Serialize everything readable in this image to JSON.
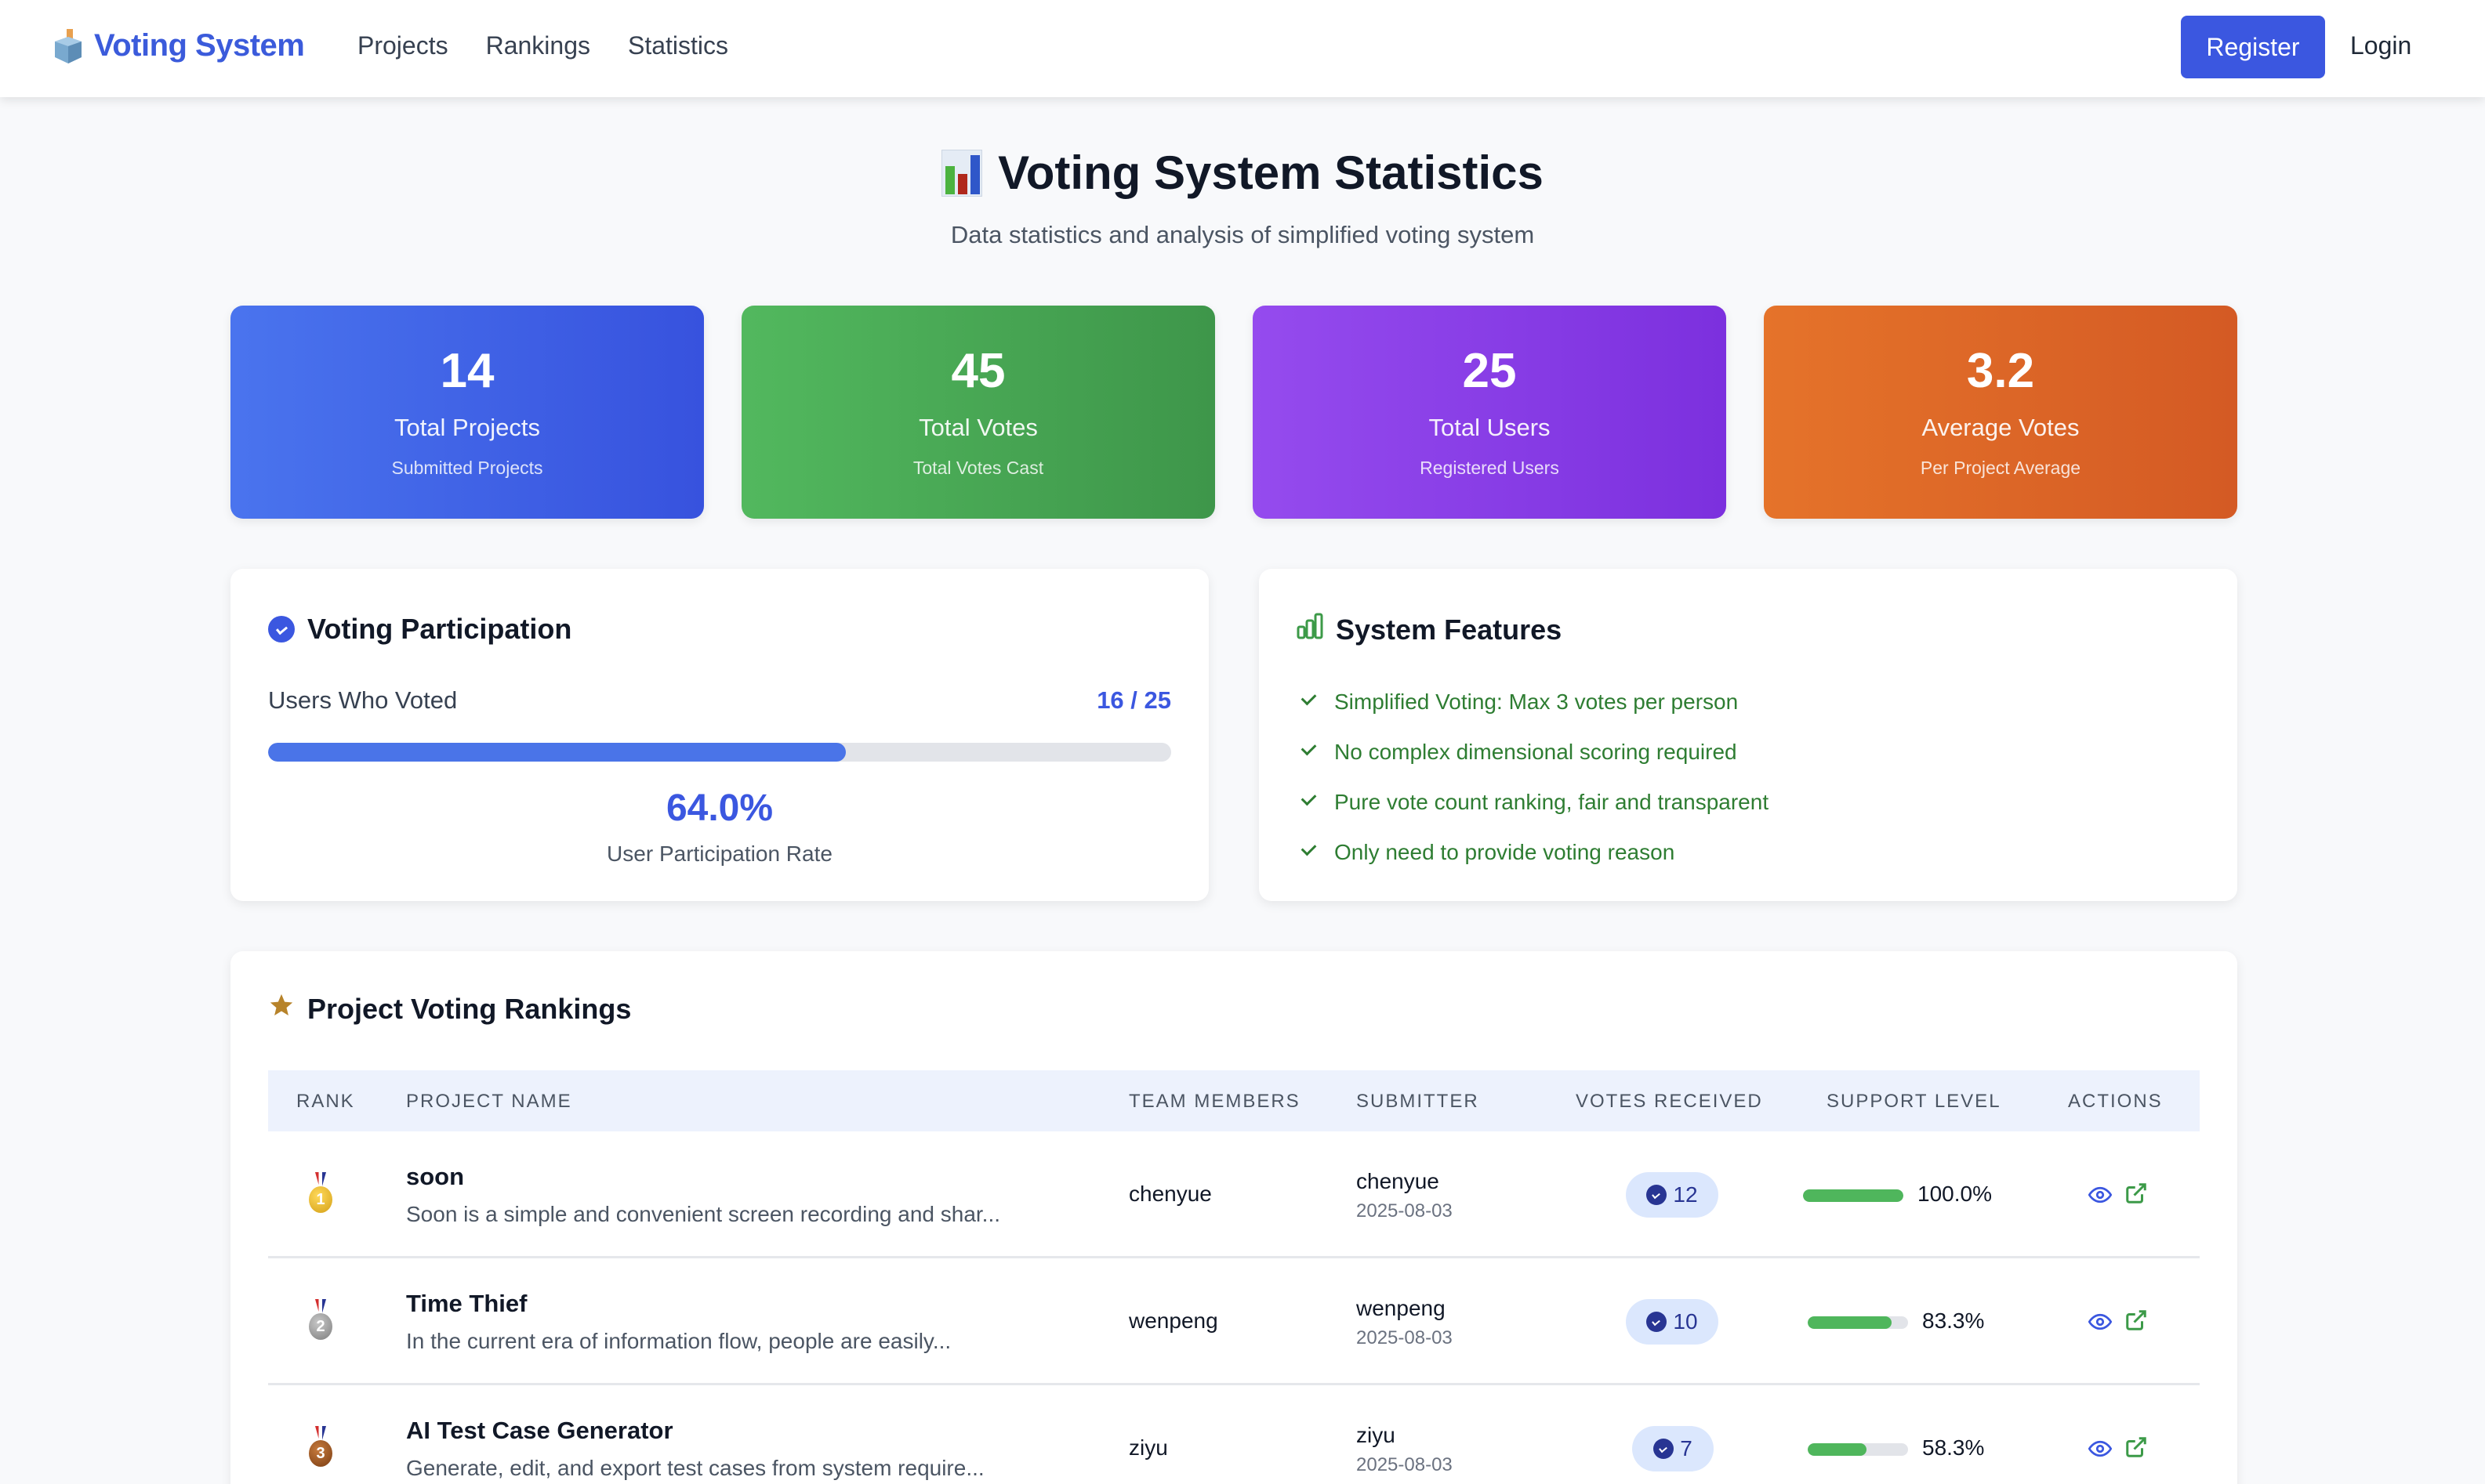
{
  "navbar": {
    "brand": "Voting System",
    "brand_icon": "ballot-box-icon",
    "links": [
      "Projects",
      "Rankings",
      "Statistics"
    ],
    "register_label": "Register",
    "login_label": "Login"
  },
  "header": {
    "title": "Voting System Statistics",
    "title_icon": "bar-chart-icon",
    "subtitle": "Data statistics and analysis of simplified voting system"
  },
  "stats": [
    {
      "value": "14",
      "label": "Total Projects",
      "sub": "Submitted Projects",
      "color_from": "#4a74ee",
      "color_to": "#3752de"
    },
    {
      "value": "45",
      "label": "Total Votes",
      "sub": "Total Votes Cast",
      "color_from": "#52b85e",
      "color_to": "#3e964a"
    },
    {
      "value": "25",
      "label": "Total Users",
      "sub": "Registered Users",
      "color_from": "#954bee",
      "color_to": "#7c30de"
    },
    {
      "value": "3.2",
      "label": "Average Votes",
      "sub": "Per Project Average",
      "color_from": "#e5732a",
      "color_to": "#d45a24"
    }
  ],
  "participation": {
    "title": "Voting Participation",
    "label": "Users Who Voted",
    "count": "16 / 25",
    "percent": 64.0,
    "rate": "64.0%",
    "rate_label": "User Participation Rate"
  },
  "features": {
    "title": "System Features",
    "items": [
      "Simplified Voting: Max 3 votes per person",
      "No complex dimensional scoring required",
      "Pure vote count ranking, fair and transparent",
      "Only need to provide voting reason"
    ]
  },
  "rankings": {
    "title": "Project Voting Rankings",
    "columns": [
      "RANK",
      "PROJECT NAME",
      "TEAM MEMBERS",
      "SUBMITTER",
      "VOTES RECEIVED",
      "SUPPORT LEVEL",
      "ACTIONS"
    ],
    "rows": [
      {
        "rank": "1",
        "medal": "gold-medal-icon",
        "name": "soon",
        "desc": "Soon is a simple and convenient screen recording and shar...",
        "team": "chenyue",
        "submitter": "chenyue",
        "date": "2025-08-03",
        "votes": "12",
        "support": 100.0,
        "support_label": "100.0%"
      },
      {
        "rank": "2",
        "medal": "silver-medal-icon",
        "name": "Time Thief",
        "desc": "In the current era of information flow, people are easily...",
        "team": "wenpeng",
        "submitter": "wenpeng",
        "date": "2025-08-03",
        "votes": "10",
        "support": 83.3,
        "support_label": "83.3%"
      },
      {
        "rank": "3",
        "medal": "bronze-medal-icon",
        "name": "AI Test Case Generator",
        "desc": "Generate, edit, and export test cases from system require...",
        "team": "ziyu",
        "submitter": "ziyu",
        "date": "2025-08-03",
        "votes": "7",
        "support": 58.3,
        "support_label": "58.3%"
      }
    ]
  },
  "colors": {
    "accent": "#3b57e0",
    "success": "#2e7d32",
    "bar_fill": "#4fb65c"
  }
}
